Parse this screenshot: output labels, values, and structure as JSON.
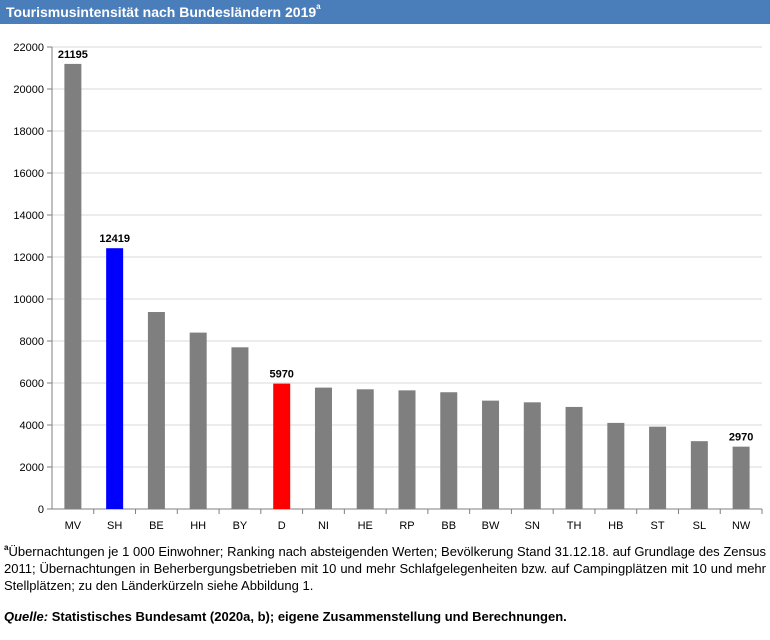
{
  "header": {
    "title": "Tourismusintensität nach Bundesländern 2019",
    "title_sup": "a"
  },
  "chart_data": {
    "type": "bar",
    "categories": [
      "MV",
      "SH",
      "BE",
      "HH",
      "BY",
      "D",
      "NI",
      "HE",
      "RP",
      "BB",
      "BW",
      "SN",
      "TH",
      "HB",
      "ST",
      "SL",
      "NW"
    ],
    "values": [
      21195,
      12419,
      9380,
      8400,
      7700,
      5970,
      5780,
      5700,
      5650,
      5560,
      5160,
      5080,
      4860,
      4100,
      3920,
      3230,
      2970
    ],
    "data_labels": [
      "21195",
      "12419",
      "",
      "",
      "",
      "5970",
      "",
      "",
      "",
      "",
      "",
      "",
      "",
      "",
      "",
      "",
      "2970"
    ],
    "y_ticks": [
      "0",
      "2000",
      "4000",
      "6000",
      "8000",
      "10000",
      "12000",
      "14000",
      "16000",
      "18000",
      "20000",
      "22000"
    ],
    "ylim": [
      0,
      22000
    ],
    "grid": true,
    "colors": {
      "default": "#7f7f7f",
      "SH": "#0000ff",
      "D": "#ff0000",
      "grid": "#d9d9d9",
      "axis": "#7f7f7f"
    }
  },
  "footnote": {
    "sup": "a",
    "text": "Übernachtungen je 1 000 Einwohner; Ranking nach absteigenden Werten; Bevölkerung Stand 31.12.18. auf Grundlage des Zensus 2011; Übernachtungen in Beherbergungsbetrieben mit 10 und mehr Schlafgelegenheiten bzw. auf Campingplätzen mit 10 und mehr Stellplätzen; zu den Länderkürzeln siehe Abbildung 1."
  },
  "source": {
    "label": "Quelle:",
    "text": " Statistisches Bundesamt (2020a, b); eigene Zusammenstellung und Berechnungen."
  }
}
